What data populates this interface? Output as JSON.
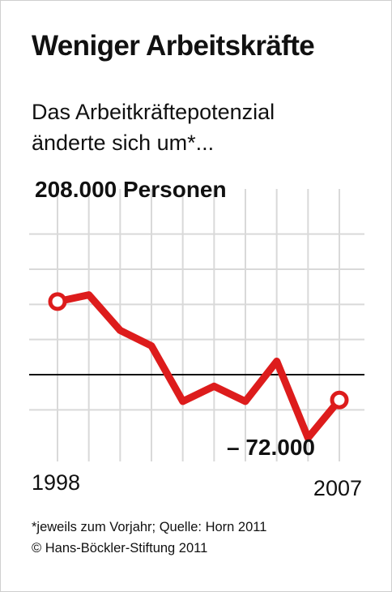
{
  "title": "Weniger Arbeitskräfte",
  "subtitle_lines": [
    "Das Arbeitkräftepotenzial",
    "änderte sich um*..."
  ],
  "footnote": "*jeweils zum Vorjahr; Quelle: Horn 2011",
  "copyright": "© Hans-Böckler-Stiftung 2011",
  "colors": {
    "line": "#dd1c1c",
    "grid": "#d9d9d9",
    "zero": "#111111",
    "text": "#111111"
  },
  "chart_data": {
    "type": "line",
    "x": [
      1998,
      1999,
      2000,
      2001,
      2002,
      2003,
      2004,
      2005,
      2006,
      2007
    ],
    "series": [
      {
        "values": [
          208000,
          227000,
          126000,
          82000,
          -76000,
          -33000,
          -76000,
          38000,
          -180000,
          -72000
        ]
      }
    ],
    "xtick_labels": [
      "1998",
      "2007"
    ],
    "annotations": [
      {
        "x": 1998,
        "text": "208.000 Personen"
      },
      {
        "x": 2007,
        "text": "– 72.000"
      }
    ],
    "ylim": [
      -210000,
      570000
    ],
    "xlabel": "",
    "ylabel": "",
    "grid": true,
    "zero_line": true,
    "endpoint_markers": true
  }
}
